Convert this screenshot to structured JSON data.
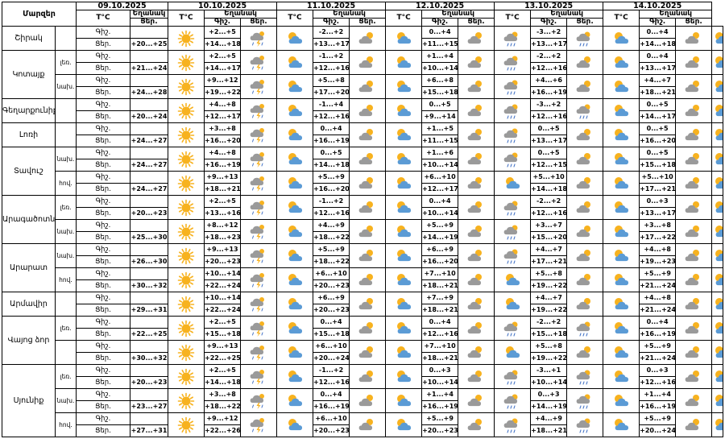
{
  "header": {
    "region_label": "Մարզեր",
    "temp_label": "T°C",
    "weather_label": "Եղանակ",
    "night_label": "Գիշ.",
    "day_label": "Ցեր.",
    "dates": [
      "09.10.2025",
      "10.10.2025",
      "11.10.2025",
      "12.10.2025",
      "13.10.2025",
      "14.10.2025"
    ]
  },
  "icon_kinds": {
    "sun": "sun-icon",
    "pc": "partly-cloudy-icon",
    "cloud": "cloud-icon",
    "cloudsun": "cloudy-sun-icon",
    "lrain": "cloud-light-rain-icon",
    "rain": "cloud-rain-icon",
    "thunder": "cloud-thunder-rain-icon"
  },
  "colors": {
    "sun": "#f7b21f",
    "cloud": "#9a9a9a",
    "cloud_light": "#bdbdbd",
    "cloud_blue": "#5b9bd5",
    "rain": "#4472c4"
  },
  "regions": [
    {
      "name": "Շիրակ",
      "subs": [
        {
          "part": "",
          "night": {
            "t0": "",
            "d": [
              "+2...+5",
              "-2...+2",
              "0...+4",
              "-3...+2",
              "0...+4"
            ],
            "n": [
              "thunder",
              "cloudsun",
              "cloudsun",
              "lrain",
              "cloudsun"
            ]
          },
          "day": {
            "t0": "+20...+25",
            "d": [
              "+14...+18",
              "+13...+17",
              "+11...+15",
              "+13...+17",
              "+14...+18"
            ],
            "i0": "sun",
            "n": [
              "pc",
              "pc",
              "lrain",
              "pc",
              "pc"
            ]
          }
        }
      ]
    },
    {
      "name": "Կոտայք",
      "subs": [
        {
          "part": "լեռ.",
          "night": {
            "t0": "",
            "d": [
              "+2...+5",
              "-1...+2",
              "+1...+4",
              "-2...+2",
              "0...+4"
            ],
            "n": [
              "thunder",
              "cloudsun",
              "cloudsun",
              "cloudsun",
              "cloudsun"
            ]
          },
          "day": {
            "t0": "+21...+24",
            "d": [
              "+14...+17",
              "+12...+16",
              "+10...+14",
              "+12...+16",
              "+13...+17"
            ],
            "i0": "sun",
            "n": [
              "pc",
              "pc",
              "lrain",
              "pc",
              "pc"
            ]
          }
        },
        {
          "part": "նախ.",
          "night": {
            "t0": "",
            "d": [
              "+9...+12",
              "+5...+8",
              "+6...+8",
              "+4...+6",
              "+4...+7"
            ],
            "n": [
              "thunder",
              "cloudsun",
              "cloudsun",
              "cloudsun",
              "cloudsun"
            ]
          },
          "day": {
            "t0": "+24...+28",
            "d": [
              "+19...+22",
              "+17...+20",
              "+15...+18",
              "+16...+19",
              "+18...+21"
            ],
            "i0": "sun",
            "n": [
              "pc",
              "pc",
              "lrain",
              "pc",
              "pc"
            ]
          }
        }
      ]
    },
    {
      "name": "Գեղարքունիք",
      "subs": [
        {
          "part": "",
          "night": {
            "t0": "",
            "d": [
              "+4...+8",
              "-1...+4",
              "0...+5",
              "-3...+2",
              "0...+5"
            ],
            "n": [
              "thunder",
              "cloudsun",
              "cloudsun",
              "lrain",
              "cloudsun"
            ]
          },
          "day": {
            "t0": "+20...+24",
            "d": [
              "+12...+17",
              "+12...+16",
              "+9...+14",
              "+12...+16",
              "+14...+17"
            ],
            "i0": "sun",
            "n": [
              "pc",
              "pc",
              "lrain",
              "pc",
              "pc"
            ]
          }
        }
      ]
    },
    {
      "name": "Լոռի",
      "subs": [
        {
          "part": "",
          "night": {
            "t0": "",
            "d": [
              "+3...+8",
              "0...+4",
              "+1...+5",
              "0...+5",
              "0...+5"
            ],
            "n": [
              "thunder",
              "cloudsun",
              "cloudsun",
              "cloudsun",
              "cloudsun"
            ]
          },
          "day": {
            "t0": "+24...+27",
            "d": [
              "+16...+20",
              "+16...+19",
              "+11...+15",
              "+13...+17",
              "+16...+20"
            ],
            "i0": "sun",
            "n": [
              "pc",
              "pc",
              "lrain",
              "pc",
              "pc"
            ]
          }
        }
      ]
    },
    {
      "name": "Տավուշ",
      "subs": [
        {
          "part": "նախ.",
          "night": {
            "t0": "",
            "d": [
              "+4...+8",
              "0...+5",
              "+1...+6",
              "0...+5",
              "0...+5"
            ],
            "n": [
              "thunder",
              "cloudsun",
              "cloudsun",
              "cloudsun",
              "cloudsun"
            ]
          },
          "day": {
            "t0": "+24...+27",
            "d": [
              "+16...+19",
              "+14...+18",
              "+10...+14",
              "+12...+15",
              "+15...+18"
            ],
            "i0": "sun",
            "n": [
              "pc",
              "pc",
              "lrain",
              "pc",
              "pc"
            ]
          }
        },
        {
          "part": "հով.",
          "night": {
            "t0": "",
            "d": [
              "+9...+13",
              "+5...+9",
              "+6...+10",
              "+5...+10",
              "+5...+10"
            ],
            "n": [
              "thunder",
              "cloudsun",
              "cloudsun",
              "cloudsun",
              "cloudsun"
            ]
          },
          "day": {
            "t0": "+24...+27",
            "d": [
              "+18...+21",
              "+16...+20",
              "+12...+17",
              "+14...+18",
              "+17...+21"
            ],
            "i0": "sun",
            "n": [
              "pc",
              "pc",
              "pc",
              "pc",
              "pc"
            ]
          }
        }
      ]
    },
    {
      "name": "Արագածոտն",
      "subs": [
        {
          "part": "լեռ.",
          "night": {
            "t0": "",
            "d": [
              "+2...+5",
              "-1...+2",
              "0...+4",
              "-2...+2",
              "0...+3"
            ],
            "n": [
              "thunder",
              "cloudsun",
              "cloudsun",
              "cloudsun",
              "cloudsun"
            ]
          },
          "day": {
            "t0": "+20...+23",
            "d": [
              "+13...+16",
              "+12...+16",
              "+10...+14",
              "+12...+16",
              "+13...+17"
            ],
            "i0": "sun",
            "n": [
              "pc",
              "pc",
              "lrain",
              "pc",
              "pc"
            ]
          }
        },
        {
          "part": "նախ.",
          "night": {
            "t0": "",
            "d": [
              "+8...+12",
              "+4...+9",
              "+5...+9",
              "+3...+7",
              "+3...+8"
            ],
            "n": [
              "thunder",
              "cloudsun",
              "cloudsun",
              "cloudsun",
              "cloudsun"
            ]
          },
          "day": {
            "t0": "+25...+30",
            "d": [
              "+18...+23",
              "+18...+22",
              "+14...+19",
              "+15...+20",
              "+17...+22"
            ],
            "i0": "sun",
            "n": [
              "pc",
              "pc",
              "lrain",
              "pc",
              "pc"
            ]
          }
        }
      ]
    },
    {
      "name": "Արարատ",
      "subs": [
        {
          "part": "նախ.",
          "night": {
            "t0": "",
            "d": [
              "+9...+13",
              "+5...+9",
              "+6...+9",
              "+4...+7",
              "+4...+8"
            ],
            "n": [
              "thunder",
              "cloudsun",
              "cloudsun",
              "cloudsun",
              "cloudsun"
            ]
          },
          "day": {
            "t0": "+26...+30",
            "d": [
              "+20...+23",
              "+18...+22",
              "+16...+20",
              "+17...+21",
              "+19...+23"
            ],
            "i0": "sun",
            "n": [
              "pc",
              "pc",
              "lrain",
              "pc",
              "pc"
            ]
          }
        },
        {
          "part": "հով.",
          "night": {
            "t0": "",
            "d": [
              "+10...+14",
              "+6...+10",
              "+7...+10",
              "+5...+8",
              "+5...+9"
            ],
            "n": [
              "thunder",
              "cloudsun",
              "cloudsun",
              "cloudsun",
              "cloudsun"
            ]
          },
          "day": {
            "t0": "+30...+32",
            "d": [
              "+22...+24",
              "+20...+23",
              "+18...+21",
              "+19...+22",
              "+21...+24"
            ],
            "i0": "sun",
            "n": [
              "pc",
              "pc",
              "pc",
              "pc",
              "pc"
            ]
          }
        }
      ]
    },
    {
      "name": "Արմավիր",
      "subs": [
        {
          "part": "",
          "night": {
            "t0": "",
            "d": [
              "+10...+14",
              "+6...+9",
              "+7...+9",
              "+4...+7",
              "+4...+8"
            ],
            "n": [
              "thunder",
              "cloudsun",
              "cloudsun",
              "cloudsun",
              "cloudsun"
            ]
          },
          "day": {
            "t0": "+29...+31",
            "d": [
              "+22...+24",
              "+20...+23",
              "+18...+21",
              "+19...+22",
              "+21...+24"
            ],
            "i0": "sun",
            "n": [
              "pc",
              "pc",
              "pc",
              "pc",
              "pc"
            ]
          }
        }
      ]
    },
    {
      "name": "Վայոց ձոր",
      "subs": [
        {
          "part": "լեռ.",
          "night": {
            "t0": "",
            "d": [
              "+2...+5",
              "0...+4",
              "0...+4",
              "-2...+2",
              "0...+4"
            ],
            "n": [
              "thunder",
              "cloudsun",
              "cloudsun",
              "lrain",
              "cloudsun"
            ]
          },
          "day": {
            "t0": "+22...+25",
            "d": [
              "+15...+18",
              "+15...+18",
              "+12...+16",
              "+15...+18",
              "+16...+19"
            ],
            "i0": "sun",
            "n": [
              "pc",
              "pc",
              "lrain",
              "pc",
              "pc"
            ]
          }
        },
        {
          "part": "",
          "night": {
            "t0": "",
            "d": [
              "+9...+13",
              "+6...+10",
              "+7...+10",
              "+5...+8",
              "+5...+9"
            ],
            "n": [
              "thunder",
              "cloudsun",
              "cloudsun",
              "cloudsun",
              "cloudsun"
            ]
          },
          "day": {
            "t0": "+30...+32",
            "d": [
              "+22...+25",
              "+20...+24",
              "+18...+21",
              "+19...+22",
              "+21...+24"
            ],
            "i0": "sun",
            "n": [
              "pc",
              "pc",
              "pc",
              "pc",
              "pc"
            ]
          }
        }
      ]
    },
    {
      "name": "Սյունիք",
      "subs": [
        {
          "part": "լեռ.",
          "night": {
            "t0": "",
            "d": [
              "+2...+5",
              "-1...+2",
              "0...+3",
              "-3...+1",
              "0...+3"
            ],
            "n": [
              "thunder",
              "cloudsun",
              "cloudsun",
              "lrain",
              "cloudsun"
            ]
          },
          "day": {
            "t0": "+20...+23",
            "d": [
              "+14...+18",
              "+12...+16",
              "+10...+14",
              "+10...+14",
              "+12...+16"
            ],
            "i0": "sun",
            "n": [
              "pc",
              "pc",
              "lrain",
              "pc",
              "pc"
            ]
          }
        },
        {
          "part": "նախ.",
          "night": {
            "t0": "",
            "d": [
              "+3...+8",
              "0...+4",
              "+1...+4",
              "0...+3",
              "+1...+4"
            ],
            "n": [
              "thunder",
              "cloudsun",
              "cloudsun",
              "lrain",
              "cloudsun"
            ]
          },
          "day": {
            "t0": "+23...+27",
            "d": [
              "+18...+22",
              "+16...+19",
              "+16...+19",
              "+14...+19",
              "+16...+19"
            ],
            "i0": "sun",
            "n": [
              "pc",
              "pc",
              "lrain",
              "pc",
              "pc"
            ]
          }
        },
        {
          "part": "հով.",
          "night": {
            "t0": "",
            "d": [
              "+9...+12",
              "+6...+10",
              "+5...+9",
              "+4...+9",
              "+5...+9"
            ],
            "n": [
              "thunder",
              "cloudsun",
              "cloudsun",
              "lrain",
              "cloudsun"
            ]
          },
          "day": {
            "t0": "+27...+31",
            "d": [
              "+22...+26",
              "+20...+23",
              "+20...+23",
              "+18...+21",
              "+20...+24"
            ],
            "i0": "sun",
            "n": [
              "pc",
              "pc",
              "lrain",
              "pc",
              "pc"
            ]
          }
        }
      ]
    }
  ]
}
